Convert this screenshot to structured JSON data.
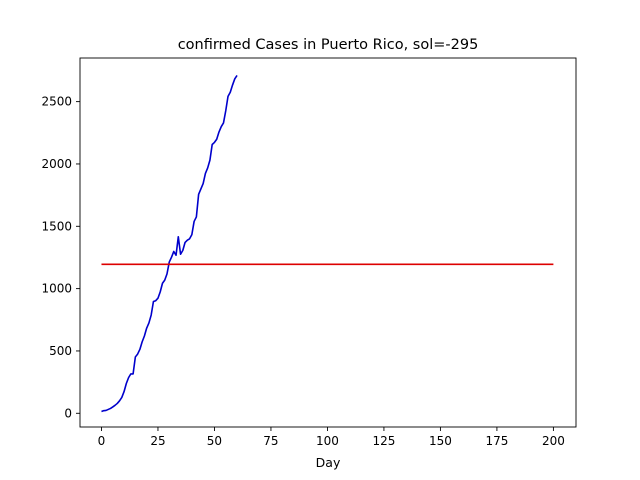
{
  "chart_data": {
    "type": "line",
    "title": "confirmed Cases in Puerto Rico, sol=-295",
    "xlabel": "Day",
    "ylabel": "",
    "xlim": [
      -9.5,
      210
    ],
    "ylim": [
      -110,
      2850
    ],
    "xticks": [
      0,
      25,
      50,
      75,
      100,
      125,
      150,
      175,
      200
    ],
    "yticks": [
      0,
      500,
      1000,
      1500,
      2000,
      2500
    ],
    "grid": false,
    "series": [
      {
        "color": "#0000cc",
        "x": [
          0,
          1,
          2,
          3,
          4,
          5,
          6,
          7,
          8,
          9,
          10,
          11,
          12,
          13,
          14,
          15,
          16,
          17,
          18,
          19,
          20,
          21,
          22,
          23,
          24,
          25,
          26,
          27,
          28,
          29,
          30,
          31,
          32,
          33,
          34,
          35,
          36,
          37,
          38,
          39,
          40,
          41,
          42,
          43,
          44,
          45,
          46,
          47,
          48,
          49,
          50,
          51,
          52,
          53,
          54,
          55,
          56,
          57,
          58,
          59,
          60
        ],
        "y": [
          14,
          21,
          23,
          31,
          39,
          51,
          64,
          79,
          100,
          127,
          174,
          239,
          286,
          316,
          316,
          452,
          475,
          513,
          573,
          620,
          683,
          725,
          788,
          897,
          903,
          923,
          974,
          1043,
          1068,
          1118,
          1213,
          1252,
          1298,
          1268,
          1416,
          1276,
          1307,
          1371,
          1389,
          1400,
          1433,
          1539,
          1575,
          1757,
          1800,
          1843,
          1924,
          1968,
          2031,
          2156,
          2173,
          2198,
          2256,
          2299,
          2329,
          2427,
          2542,
          2575,
          2633,
          2683,
          2710
        ]
      },
      {
        "color": "#dd0000",
        "x": [
          0,
          200
        ],
        "y": [
          1195,
          1195
        ]
      }
    ]
  }
}
